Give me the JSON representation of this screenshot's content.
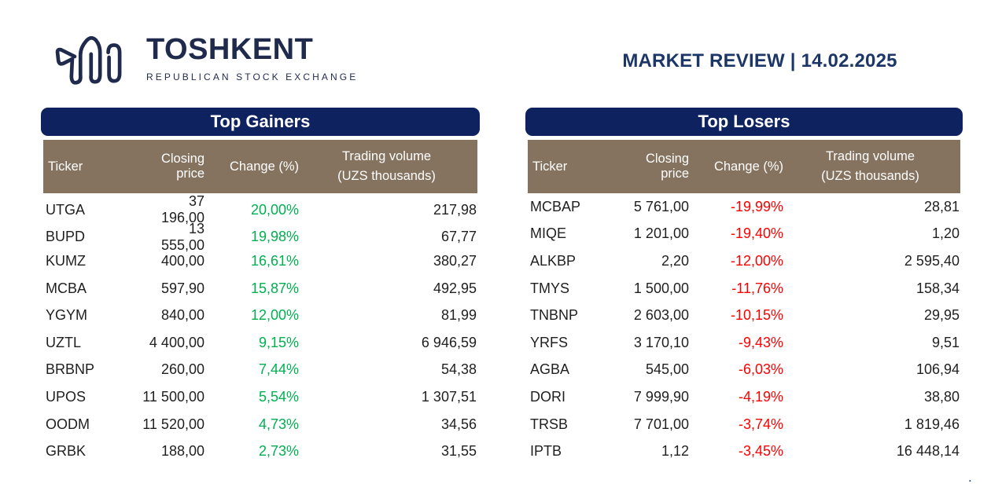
{
  "header": {
    "logo_name": "TOSHKENT",
    "logo_subtitle": "REPUBLICAN STOCK EXCHANGE",
    "review_title": "MARKET REVIEW | 14.02.2025"
  },
  "colors": {
    "bar_navy": "#0E2260",
    "head_taupe": "#85735F",
    "brand_navy": "#1F2A4D",
    "title_navy": "#1C3667",
    "positive_green": "#00B050",
    "negative_red": "#FF0000"
  },
  "tables": {
    "columns": {
      "ticker": "Ticker",
      "closing_price": "Closing price",
      "change": "Change (%)",
      "volume_line1": "Trading volume",
      "volume_line2": "(UZS thousands)"
    },
    "gainers": {
      "title": "Top Gainers",
      "rows": [
        {
          "ticker": "UTGA",
          "closing_price": "37 196,00",
          "change": "20,00%",
          "volume": "217,98"
        },
        {
          "ticker": "BUPD",
          "closing_price": "13 555,00",
          "change": "19,98%",
          "volume": "67,77"
        },
        {
          "ticker": "KUMZ",
          "closing_price": "400,00",
          "change": "16,61%",
          "volume": "380,27"
        },
        {
          "ticker": "MCBA",
          "closing_price": "597,90",
          "change": "15,87%",
          "volume": "492,95"
        },
        {
          "ticker": "YGYM",
          "closing_price": "840,00",
          "change": "12,00%",
          "volume": "81,99"
        },
        {
          "ticker": "UZTL",
          "closing_price": "4 400,00",
          "change": "9,15%",
          "volume": "6 946,59"
        },
        {
          "ticker": "BRBNP",
          "closing_price": "260,00",
          "change": "7,44%",
          "volume": "54,38"
        },
        {
          "ticker": "UPOS",
          "closing_price": "11 500,00",
          "change": "5,54%",
          "volume": "1 307,51"
        },
        {
          "ticker": "OODM",
          "closing_price": "11 520,00",
          "change": "4,73%",
          "volume": "34,56"
        },
        {
          "ticker": "GRBK",
          "closing_price": "188,00",
          "change": "2,73%",
          "volume": "31,55"
        }
      ]
    },
    "losers": {
      "title": "Top Losers",
      "rows": [
        {
          "ticker": "MCBAP",
          "closing_price": "5 761,00",
          "change": "-19,99%",
          "volume": "28,81"
        },
        {
          "ticker": "MIQE",
          "closing_price": "1 201,00",
          "change": "-19,40%",
          "volume": "1,20"
        },
        {
          "ticker": "ALKBP",
          "closing_price": "2,20",
          "change": "-12,00%",
          "volume": "2 595,40"
        },
        {
          "ticker": "TMYS",
          "closing_price": "1 500,00",
          "change": "-11,76%",
          "volume": "158,34"
        },
        {
          "ticker": "TNBNP",
          "closing_price": "2 603,00",
          "change": "-10,15%",
          "volume": "29,95"
        },
        {
          "ticker": "YRFS",
          "closing_price": "3 170,10",
          "change": "-9,43%",
          "volume": "9,51"
        },
        {
          "ticker": "AGBA",
          "closing_price": "545,00",
          "change": "-6,03%",
          "volume": "106,94"
        },
        {
          "ticker": "DORI",
          "closing_price": "7 999,90",
          "change": "-4,19%",
          "volume": "38,80"
        },
        {
          "ticker": "TRSB",
          "closing_price": "7 701,00",
          "change": "-3,74%",
          "volume": "1 819,46"
        },
        {
          "ticker": "IPTB",
          "closing_price": "1,12",
          "change": "-3,45%",
          "volume": "16 448,14"
        }
      ]
    }
  },
  "footer": {
    "dot": "."
  }
}
